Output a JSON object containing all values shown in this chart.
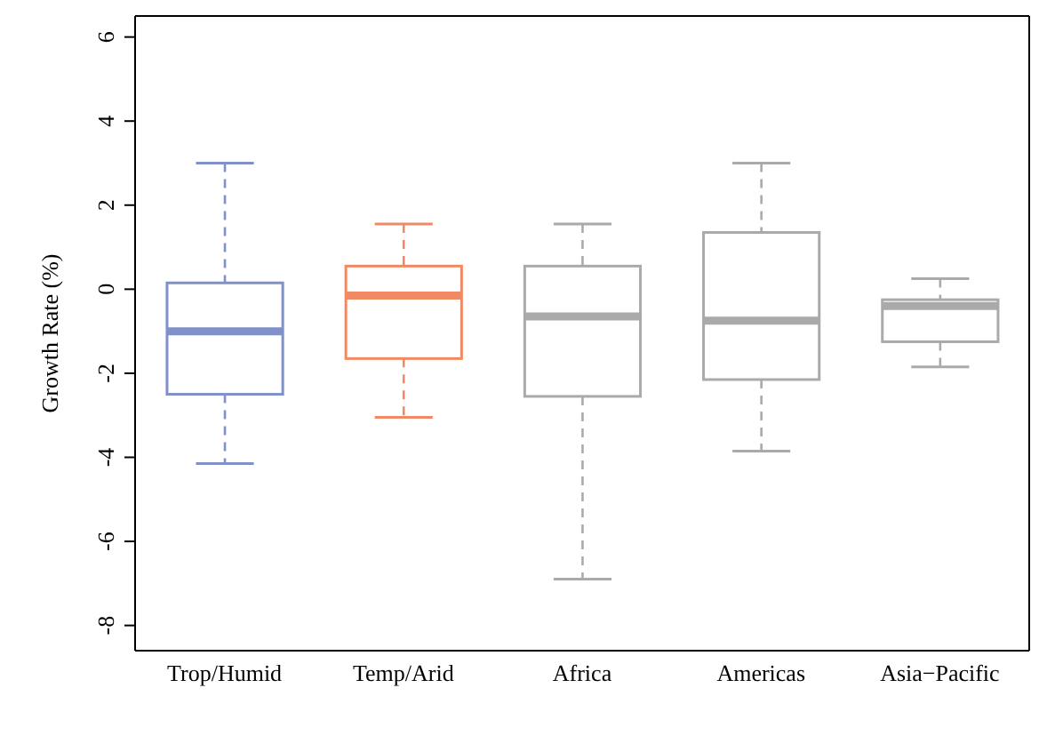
{
  "chart_data": {
    "type": "box",
    "ylabel": "Growth Rate (%)",
    "categories": [
      "Trop/Humid",
      "Temp/Arid",
      "Africa",
      "Americas",
      "Asia−Pacific"
    ],
    "colors": [
      "#8090c8",
      "#f08a64",
      "#aaaaaa",
      "#aaaaaa",
      "#aaaaaa"
    ],
    "boxes": [
      {
        "low": -4.15,
        "q1": -2.5,
        "median": -1.0,
        "q3": 0.15,
        "high": 3.0
      },
      {
        "low": -3.05,
        "q1": -1.65,
        "median": -0.15,
        "q3": 0.55,
        "high": 1.55
      },
      {
        "low": -6.9,
        "q1": -2.55,
        "median": -0.65,
        "q3": 0.55,
        "high": 1.55
      },
      {
        "low": -3.85,
        "q1": -2.15,
        "median": -0.75,
        "q3": 1.35,
        "high": 3.0
      },
      {
        "low": -1.85,
        "q1": -1.25,
        "median": -0.4,
        "q3": -0.25,
        "high": 0.25
      }
    ],
    "ylim": [
      -8.6,
      6.5
    ],
    "yticks": [
      -8,
      -6,
      -4,
      -2,
      0,
      2,
      4,
      6
    ],
    "grid": false
  }
}
